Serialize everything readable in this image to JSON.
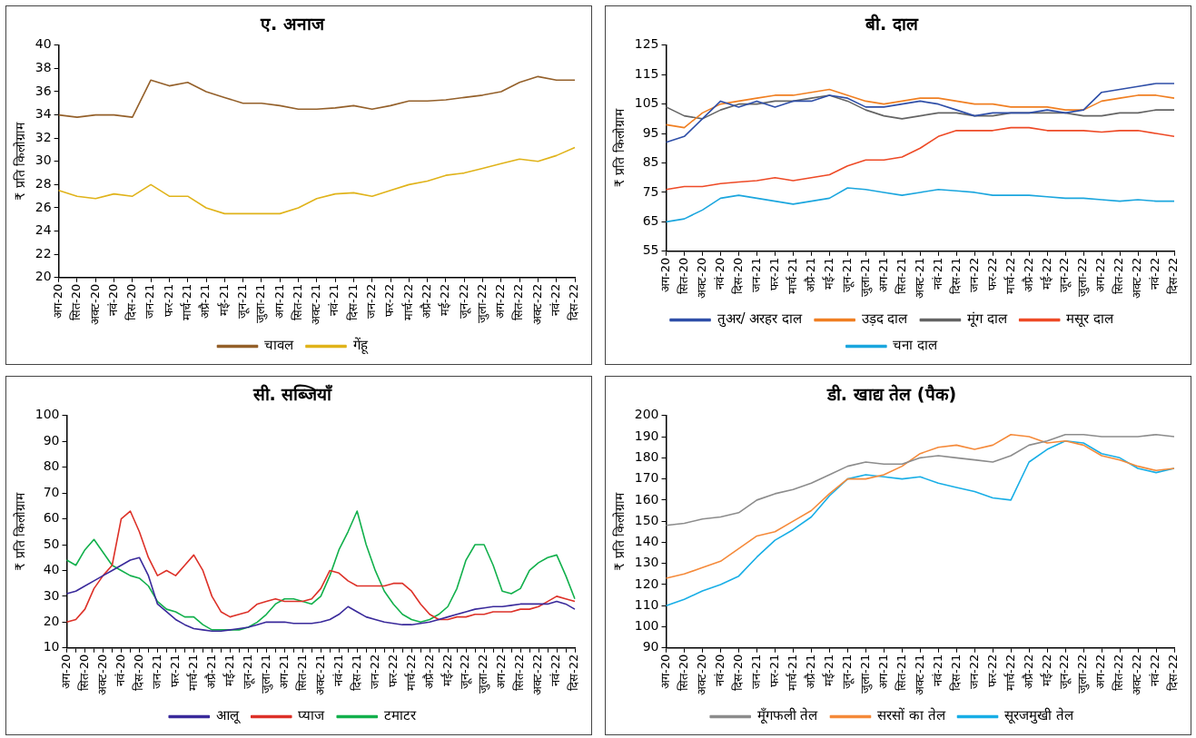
{
  "chart_data": [
    {
      "type": "line",
      "title": "ए. अनाज",
      "ylabel": "₹ प्रति किलोग्राम",
      "categories": [
        "अग-20",
        "सित-20",
        "अक्ट-20",
        "नवं-20",
        "दिस-20",
        "जन-21",
        "फर-21",
        "मार्च-21",
        "अप्रै-21",
        "मई-21",
        "जून-21",
        "जुला-21",
        "अग-21",
        "सित-21",
        "अक्ट-21",
        "नवं-21",
        "दिस-21",
        "जन-22",
        "फर-22",
        "मार्च-22",
        "अप्रै-22",
        "मई-22",
        "जून-22",
        "जुला-22",
        "अग-22",
        "सित-22",
        "अक्ट-22",
        "नवं-22",
        "दिस-22"
      ],
      "ylim": [
        20,
        40
      ],
      "yticks": [
        20,
        22,
        24,
        26,
        28,
        30,
        32,
        34,
        36,
        38,
        40
      ],
      "grid": false,
      "legend": "bottom",
      "marker": "none",
      "series": [
        {
          "name": "चावल",
          "color": "#94602a",
          "values": [
            34,
            33.8,
            34,
            34,
            33.8,
            37,
            36.5,
            36.8,
            36,
            35.5,
            35,
            35,
            34.8,
            34.5,
            34.5,
            34.6,
            34.8,
            34.5,
            34.8,
            35.2,
            35.2,
            35.3,
            35.5,
            35.7,
            36,
            36.8,
            37.3,
            37,
            37
          ]
        },
        {
          "name": "गेंहू",
          "color": "#e0b31a",
          "values": [
            27.5,
            27,
            26.8,
            27.2,
            27,
            28,
            27,
            27,
            26,
            25.5,
            25.5,
            25.5,
            25.5,
            26,
            26.8,
            27.2,
            27.3,
            27,
            27.5,
            28,
            28.3,
            28.8,
            29,
            29.4,
            29.8,
            30.2,
            30,
            30.5,
            31.2
          ]
        }
      ]
    },
    {
      "type": "line",
      "title": "बी. दाल",
      "ylabel": "₹ प्रति किलोग्राम",
      "categories": [
        "अग-20",
        "सित-20",
        "अक्ट-20",
        "नवं-20",
        "दिस-20",
        "जन-21",
        "फर-21",
        "मार्च-21",
        "अप्रै-21",
        "मई-21",
        "जून-21",
        "जुला-21",
        "अग-21",
        "सित-21",
        "अक्ट-21",
        "नवं-21",
        "दिस-21",
        "जन-22",
        "फर-22",
        "मार्च-22",
        "अप्रै-22",
        "मई-22",
        "जून-22",
        "जुला-22",
        "अग-22",
        "सित-22",
        "अक्ट-22",
        "नवं-22",
        "दिस-22"
      ],
      "ylim": [
        55,
        125
      ],
      "yticks": [
        55,
        65,
        75,
        85,
        95,
        105,
        115,
        125
      ],
      "grid": false,
      "legend": "bottom",
      "marker": "none",
      "series": [
        {
          "name": "तुअर/ अरहर दाल",
          "color": "#2f4fa8",
          "values": [
            92,
            94,
            100,
            106,
            104,
            106,
            104,
            106,
            106,
            108,
            107,
            104,
            104,
            105,
            106,
            105,
            103,
            101,
            102,
            102,
            102,
            103,
            102,
            103,
            109,
            110,
            111,
            112,
            112
          ]
        },
        {
          "name": "उड़द दाल",
          "color": "#f07f22",
          "values": [
            98,
            97,
            102,
            105,
            106,
            107,
            108,
            108,
            109,
            110,
            108,
            106,
            105,
            106,
            107,
            107,
            106,
            105,
            105,
            104,
            104,
            104,
            103,
            103,
            106,
            107,
            108,
            108,
            107
          ]
        },
        {
          "name": "मूंग दाल",
          "color": "#646464",
          "values": [
            104,
            101,
            100,
            103,
            105,
            105,
            106,
            106,
            107,
            108,
            106,
            103,
            101,
            100,
            101,
            102,
            102,
            101,
            101,
            102,
            102,
            102,
            102,
            101,
            101,
            102,
            102,
            103,
            103
          ]
        },
        {
          "name": "मसूर दाल",
          "color": "#ee4a26",
          "values": [
            76,
            77,
            77,
            78,
            78.5,
            79,
            80,
            79,
            80,
            81,
            84,
            86,
            86,
            87,
            90,
            94,
            96,
            96,
            96,
            97,
            97,
            96,
            96,
            96,
            95.5,
            96,
            96,
            95,
            94
          ]
        },
        {
          "name": "चना दाल",
          "color": "#1ba6de",
          "values": [
            65,
            66,
            69,
            73,
            74,
            73,
            72,
            71,
            72,
            73,
            76.5,
            76,
            75,
            74,
            75,
            76,
            75.5,
            75,
            74,
            74,
            74,
            73.5,
            73,
            73,
            72.5,
            72,
            72.5,
            72,
            72
          ]
        }
      ]
    },
    {
      "type": "line",
      "title": "सी. सब्जियाँ",
      "ylabel": "₹ प्रति किलोग्राम",
      "categories": [
        "अग-20",
        null,
        "सित-20",
        null,
        "अक्ट-20",
        null,
        "नवं-20",
        null,
        "दिस-20",
        null,
        "जन-21",
        null,
        "फर-21",
        null,
        "मार्च-21",
        null,
        "अप्रै-21",
        null,
        "मई-21",
        null,
        "जून-21",
        null,
        "जुला-21",
        null,
        "अग-21",
        null,
        "सित-21",
        null,
        "अक्ट-21",
        null,
        "नवं-21",
        null,
        "दिस-21",
        null,
        "जन-22",
        null,
        "फर-22",
        null,
        "मार्च-22",
        null,
        "अप्रै-22",
        null,
        "मई-22",
        null,
        "जून-22",
        null,
        "जुला-22",
        null,
        "अग-22",
        null,
        "सित-22",
        null,
        "अक्ट-22",
        null,
        "नवं-22",
        null,
        "दिस-22"
      ],
      "ylim": [
        10,
        100
      ],
      "yticks": [
        10,
        20,
        30,
        40,
        50,
        60,
        70,
        80,
        90,
        100
      ],
      "grid": false,
      "legend": "bottom",
      "marker": "none",
      "series": [
        {
          "name": "आलू",
          "color": "#3a2a9b",
          "values": [
            31,
            32,
            34,
            36,
            38,
            40,
            42,
            44,
            45,
            38,
            27,
            24,
            21,
            19,
            17.5,
            17,
            16.5,
            16.5,
            17,
            17.5,
            18,
            19,
            20,
            20,
            20,
            19.5,
            19.5,
            19.5,
            20,
            21,
            23,
            26,
            24,
            22,
            21,
            20,
            19.5,
            19,
            19,
            19.5,
            20,
            21,
            22,
            23,
            24,
            25,
            25.5,
            26,
            26,
            26.5,
            27,
            27,
            27,
            27,
            28,
            27,
            25
          ]
        },
        {
          "name": "प्याज",
          "color": "#dd3128",
          "values": [
            20,
            21,
            25,
            33,
            38,
            42,
            60,
            63,
            55,
            45,
            38,
            40,
            38,
            42,
            46,
            40,
            30,
            24,
            22,
            23,
            24,
            27,
            28,
            29,
            28,
            28,
            28,
            29,
            33,
            40,
            39,
            36,
            34,
            34,
            34,
            34,
            35,
            35,
            32,
            27,
            23,
            21,
            21,
            22,
            22,
            23,
            23,
            24,
            24,
            24,
            25,
            25,
            26,
            28,
            30,
            29,
            28
          ]
        },
        {
          "name": "टमाटर",
          "color": "#12b04c",
          "values": [
            44,
            42,
            48,
            52,
            47,
            42,
            40,
            38,
            37,
            34,
            28,
            25,
            24,
            22,
            22,
            19,
            17,
            17,
            17,
            17,
            18,
            20,
            23,
            27,
            29,
            29,
            28,
            27,
            30,
            38,
            48,
            55,
            63,
            50,
            40,
            32,
            27,
            23,
            21,
            20,
            21,
            23,
            26,
            33,
            44,
            50,
            50,
            42,
            32,
            31,
            33,
            40,
            43,
            45,
            46,
            38,
            29
          ]
        }
      ]
    },
    {
      "type": "line",
      "title": "डी. खाद्य तेल (पैक)",
      "ylabel": "₹ प्रति किलोग्राम",
      "categories": [
        "अग-20",
        "सित-20",
        "अक्ट-20",
        "नवं-20",
        "दिस-20",
        "जन-21",
        "फर-21",
        "मार्च-21",
        "अप्रै-21",
        "मई-21",
        "जून-21",
        "जुला-21",
        "अग-21",
        "सित-21",
        "अक्ट-21",
        "नवं-21",
        "दिस-21",
        "जन-22",
        "फर-22",
        "मार्च-22",
        "अप्रै-22",
        "मई-22",
        "जून-22",
        "जुला-22",
        "अग-22",
        "सित-22",
        "अक्ट-22",
        "नवं-22",
        "दिस-22"
      ],
      "ylim": [
        90,
        200
      ],
      "yticks": [
        90,
        100,
        110,
        120,
        130,
        140,
        150,
        160,
        170,
        180,
        190,
        200
      ],
      "grid": false,
      "legend": "bottom",
      "marker": "none",
      "series": [
        {
          "name": "मूँगफली तेल",
          "color": "#8c8c8c",
          "values": [
            148,
            149,
            151,
            152,
            154,
            160,
            163,
            165,
            168,
            172,
            176,
            178,
            177,
            177,
            180,
            181,
            180,
            179,
            178,
            181,
            186,
            188,
            191,
            191,
            190,
            190,
            190,
            191,
            190
          ]
        },
        {
          "name": "सरसों का तेल",
          "color": "#f58a3a",
          "values": [
            123,
            125,
            128,
            131,
            137,
            143,
            145,
            150,
            155,
            163,
            170,
            170,
            172,
            176,
            182,
            185,
            186,
            184,
            186,
            191,
            190,
            187,
            188,
            186,
            181,
            179,
            176,
            174,
            175
          ]
        },
        {
          "name": "सूरजमुखी तेल",
          "color": "#18aee6",
          "values": [
            110,
            113,
            117,
            120,
            124,
            133,
            141,
            146,
            152,
            162,
            170,
            172,
            171,
            170,
            171,
            168,
            166,
            164,
            161,
            160,
            178,
            184,
            188,
            187,
            182,
            180,
            175,
            173,
            175
          ]
        }
      ]
    }
  ]
}
